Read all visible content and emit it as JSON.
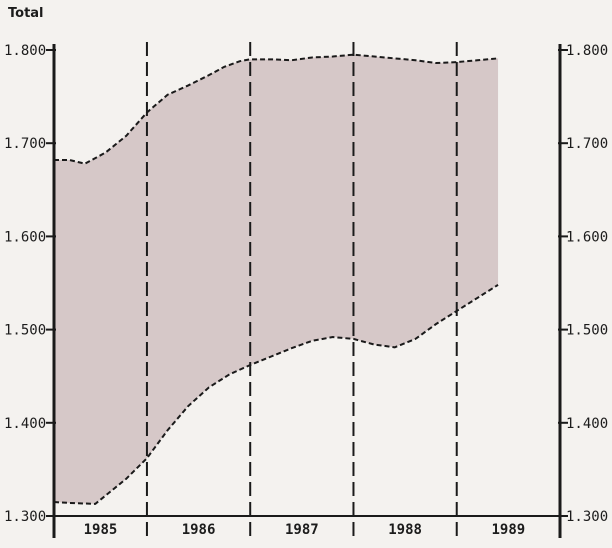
{
  "chart_data": {
    "type": "area",
    "title": "Total",
    "ylim": [
      1300,
      1800
    ],
    "y_ticks": [
      1300,
      1400,
      1500,
      1600,
      1700,
      1800
    ],
    "y_tick_labels_left": [
      "1.300",
      "1.400",
      "1.500",
      "1.600",
      "1.700",
      "1.800"
    ],
    "y_tick_labels_right": [
      "1.300",
      "1.400",
      "1.500",
      "1.600",
      "1.700",
      "1.800"
    ],
    "x_range": [
      1984.6,
      1989.5
    ],
    "categories": [
      "1985",
      "1986",
      "1987",
      "1988",
      "1989"
    ],
    "period_dividers": [
      1985.5,
      1986.5,
      1987.5,
      1988.5
    ],
    "upper_bound": {
      "x": [
        1984.6,
        1984.75,
        1984.9,
        1985.1,
        1985.3,
        1985.5,
        1985.7,
        1985.9,
        1986.1,
        1986.25,
        1986.4,
        1986.5,
        1986.7,
        1986.9,
        1987.1,
        1987.3,
        1987.5,
        1987.7,
        1987.9,
        1988.1,
        1988.3,
        1988.5,
        1988.7,
        1988.9
      ],
      "y": [
        1682,
        1682,
        1678,
        1690,
        1708,
        1733,
        1752,
        1762,
        1773,
        1782,
        1788,
        1790,
        1790,
        1789,
        1792,
        1793,
        1795,
        1793,
        1791,
        1789,
        1786,
        1787,
        1789,
        1791
      ]
    },
    "lower_bound": {
      "x": [
        1984.6,
        1984.75,
        1985.0,
        1985.1,
        1985.3,
        1985.5,
        1985.7,
        1985.9,
        1986.1,
        1986.3,
        1986.5,
        1986.7,
        1986.9,
        1987.1,
        1987.3,
        1987.5,
        1987.7,
        1987.9,
        1988.1,
        1988.3,
        1988.5,
        1988.7,
        1988.9
      ],
      "y": [
        1315,
        1314,
        1313,
        1322,
        1340,
        1362,
        1392,
        1418,
        1438,
        1452,
        1462,
        1471,
        1480,
        1488,
        1492,
        1490,
        1484,
        1481,
        1490,
        1506,
        1520,
        1534,
        1548
      ]
    },
    "fill_color": "#d6c8c8",
    "line_color": "#1a1a1a",
    "grid": false
  }
}
